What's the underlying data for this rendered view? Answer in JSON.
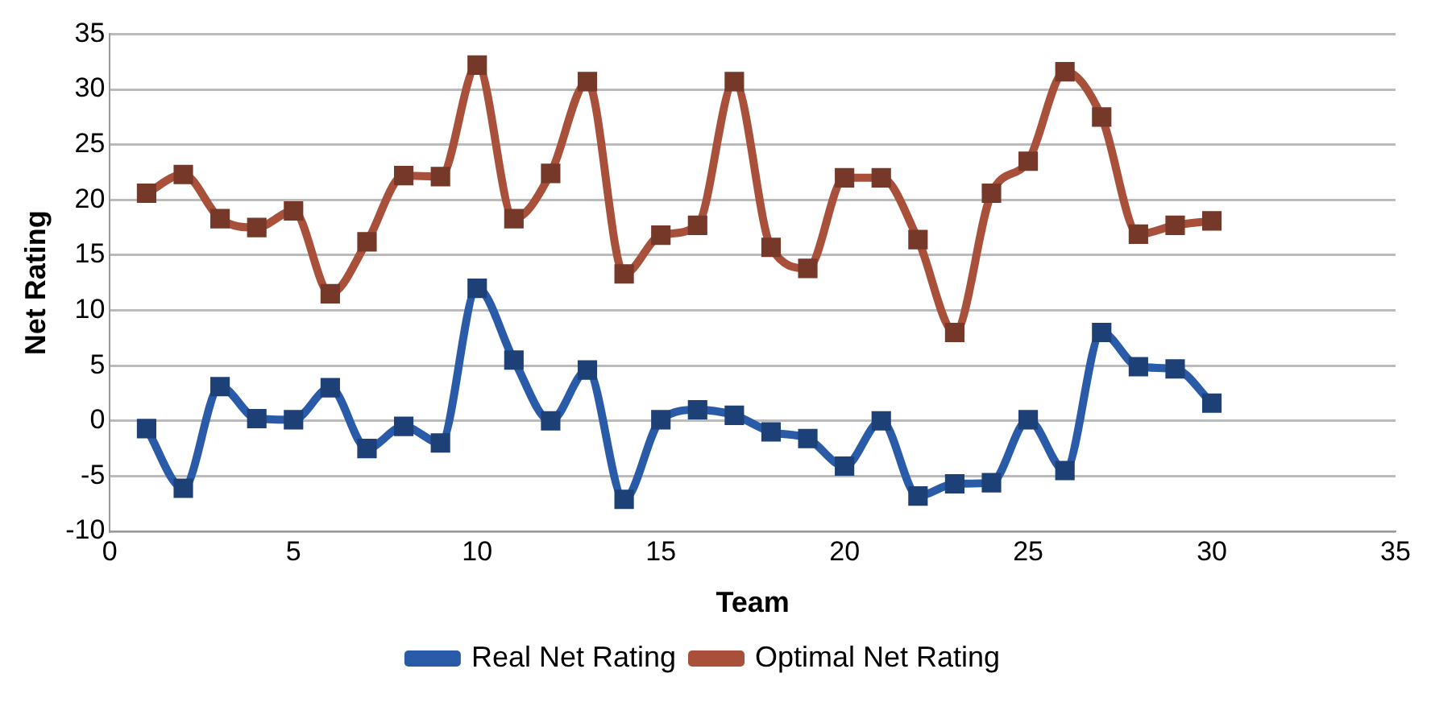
{
  "chart_data": {
    "type": "line",
    "xlabel": "Team",
    "ylabel": "Net Rating",
    "x": [
      1,
      2,
      3,
      4,
      5,
      6,
      7,
      8,
      9,
      10,
      11,
      12,
      13,
      14,
      15,
      16,
      17,
      18,
      19,
      20,
      21,
      22,
      23,
      24,
      25,
      26,
      27,
      28,
      29,
      30
    ],
    "series": [
      {
        "name": "Real Net Rating",
        "color": "#2a5ba8",
        "values": [
          -0.7,
          -6.1,
          3.1,
          0.2,
          0.1,
          3,
          -2.5,
          -0.5,
          -2,
          12,
          5.5,
          0,
          4.6,
          -7.1,
          0.1,
          1,
          0.5,
          -1,
          -1.6,
          -4.1,
          0,
          -6.8,
          -5.7,
          -5.6,
          0.1,
          -4.5,
          8,
          4.9,
          4.7,
          1.6
        ]
      },
      {
        "name": "Optimal Net Rating",
        "color": "#a9503a",
        "values": [
          20.6,
          22.3,
          18.3,
          17.5,
          19,
          11.5,
          16.2,
          22.2,
          22.1,
          32.2,
          18.3,
          22.4,
          30.7,
          13.3,
          16.8,
          17.7,
          30.7,
          15.7,
          13.8,
          22,
          22,
          16.4,
          8,
          20.6,
          23.5,
          31.6,
          27.5,
          16.9,
          17.7,
          18.1
        ]
      }
    ],
    "xlim": [
      0,
      35
    ],
    "xticks": [
      0,
      5,
      10,
      15,
      20,
      25,
      30,
      35
    ],
    "ylim": [
      -10,
      35
    ],
    "yticks": [
      -10,
      -5,
      0,
      5,
      10,
      15,
      20,
      25,
      30,
      35
    ],
    "grid": "y",
    "legend": "bottom",
    "marker": "square",
    "line_style": "solid"
  }
}
